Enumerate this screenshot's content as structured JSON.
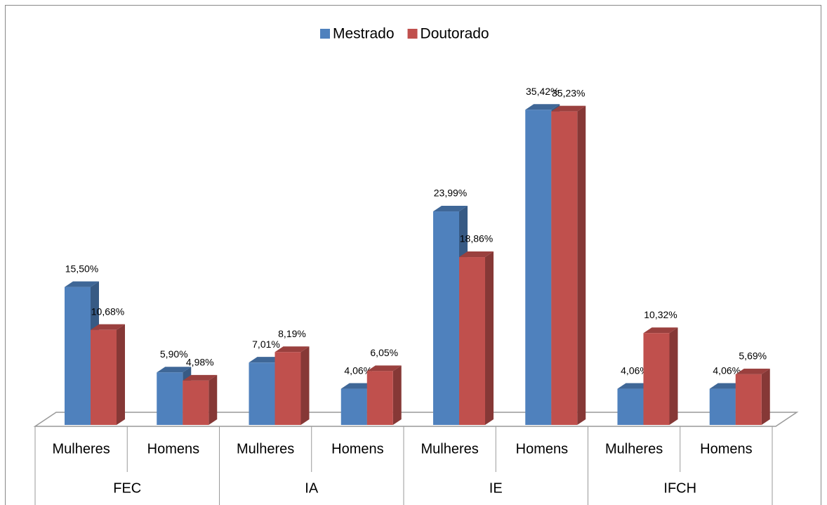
{
  "chart_data": {
    "type": "bar3d",
    "groups": [
      {
        "label": "FEC",
        "categories": [
          "Mulheres",
          "Homens"
        ]
      },
      {
        "label": "IA",
        "categories": [
          "Mulheres",
          "Homens"
        ]
      },
      {
        "label": "IE",
        "categories": [
          "Mulheres",
          "Homens"
        ]
      },
      {
        "label": "IFCH",
        "categories": [
          "Mulheres",
          "Homens"
        ]
      }
    ],
    "series": [
      {
        "name": "Mestrado",
        "color": "#4f81bd",
        "values": [
          15.5,
          5.9,
          7.01,
          4.06,
          23.99,
          35.42,
          4.06,
          4.06
        ],
        "value_labels": [
          "15,50%",
          "5,90%",
          "7,01%",
          "4,06%",
          "23,99%",
          "35,42%",
          "4,06%",
          "4,06%"
        ]
      },
      {
        "name": "Doutorado",
        "color": "#c0504d",
        "values": [
          10.68,
          4.98,
          8.19,
          6.05,
          18.86,
          35.23,
          10.32,
          5.69
        ],
        "value_labels": [
          "10,68%",
          "4,98%",
          "8,19%",
          "6,05%",
          "18,86%",
          "35,23%",
          "10,32%",
          "5,69%"
        ]
      }
    ],
    "legend": "top"
  }
}
